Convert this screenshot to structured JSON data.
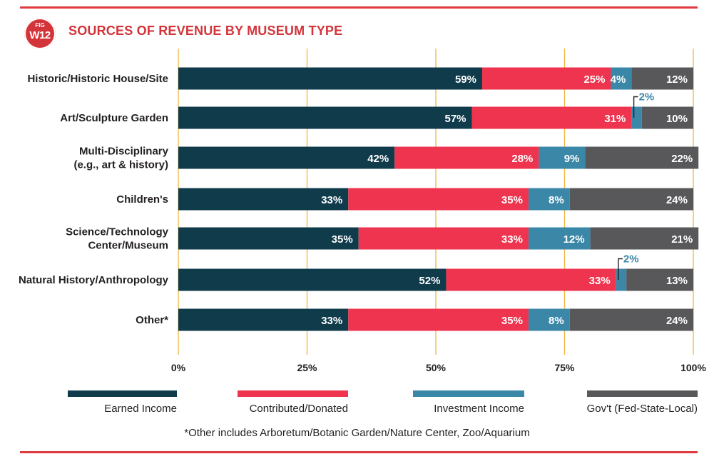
{
  "header": {
    "badge_top": "FIG",
    "badge_bottom": "W12",
    "title": "SOURCES OF REVENUE BY MUSEUM TYPE"
  },
  "footnote": "*Other includes Arboretum/Botanic Garden/Nature Center, Zoo/Aquarium",
  "colors": {
    "accent": "#d3343a",
    "grid": "#f2b63f",
    "label_dark": "#231f20",
    "callout": "#3a87a8"
  },
  "chart_data": {
    "type": "bar",
    "orientation": "horizontal",
    "stacked": true,
    "title": "SOURCES OF REVENUE BY MUSEUM TYPE",
    "categories": [
      [
        "Historic/Historic House/Site"
      ],
      [
        "Art/Sculpture Garden"
      ],
      [
        "Multi-Disciplinary",
        "(e.g., art & history)"
      ],
      [
        "Children's"
      ],
      [
        "Science/Technology",
        "Center/Museum"
      ],
      [
        "Natural History/Anthropology"
      ],
      [
        "Other*"
      ]
    ],
    "series": [
      {
        "name": "Earned Income",
        "color": "#0f3b4b",
        "values": [
          59,
          57,
          42,
          33,
          35,
          52,
          33
        ]
      },
      {
        "name": "Contributed/Donated",
        "color": "#ee344e",
        "values": [
          25,
          31,
          28,
          35,
          33,
          33,
          35
        ]
      },
      {
        "name": "Investment Income",
        "color": "#3a87a8",
        "values": [
          4,
          2,
          9,
          8,
          12,
          2,
          8
        ]
      },
      {
        "name": "Gov't (Fed-State-Local)",
        "color": "#58585a",
        "values": [
          12,
          10,
          22,
          24,
          21,
          13,
          24
        ]
      }
    ],
    "xlim": [
      0,
      100
    ],
    "xticks": [
      "0%",
      "25%",
      "50%",
      "75%",
      "100%"
    ],
    "value_suffix": "%",
    "grid": true,
    "legend_position": "bottom"
  }
}
